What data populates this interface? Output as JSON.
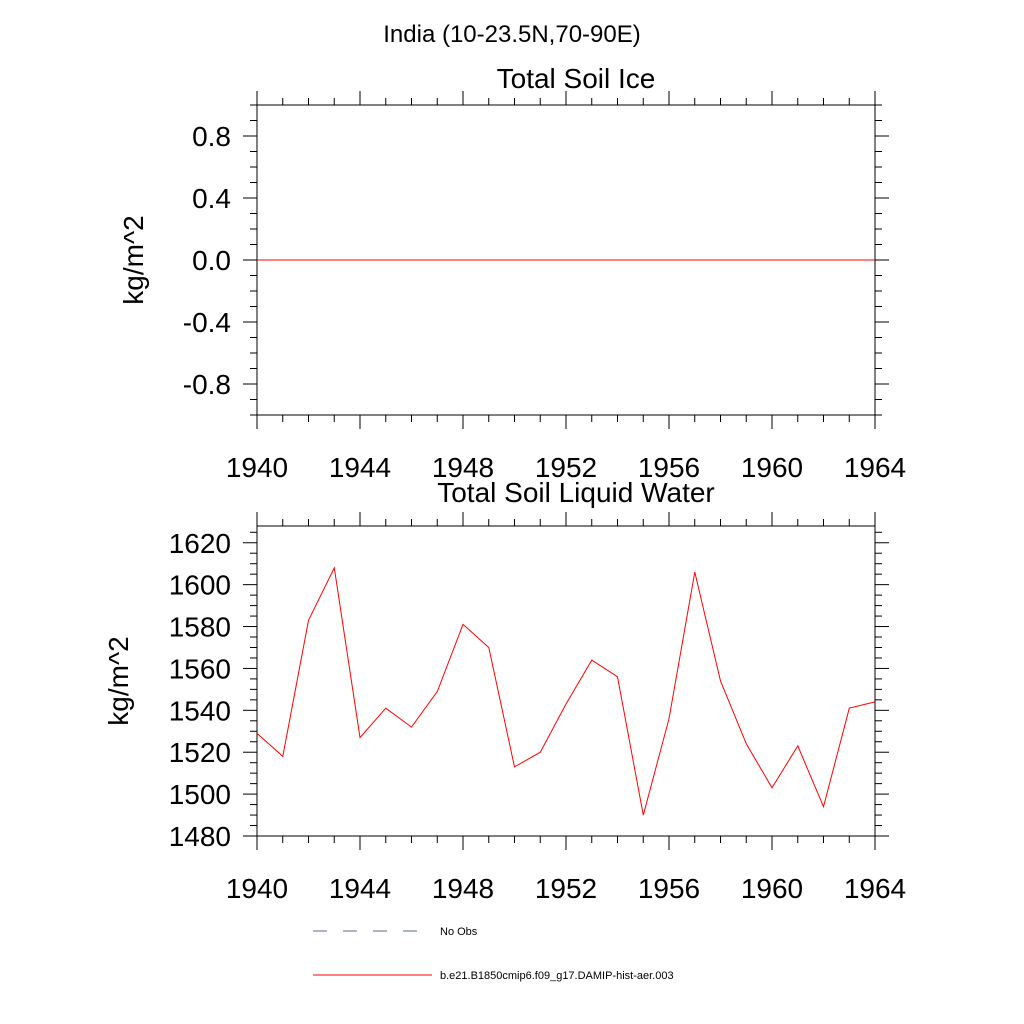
{
  "page": {
    "suptitle": "India (10-23.5N,70-90E)"
  },
  "chart_data": [
    {
      "type": "line",
      "title": "Total Soil Ice",
      "xlabel": "",
      "ylabel": "kg/m^2",
      "xlim": [
        1940,
        1964
      ],
      "ylim": [
        -1.0,
        1.0
      ],
      "x_ticks": [
        "1940",
        "1944",
        "1948",
        "1952",
        "1956",
        "1960",
        "1964"
      ],
      "y_ticks": [
        "0.8",
        "0.4",
        "0.0",
        "-0.4",
        "-0.8"
      ],
      "x": [
        1940,
        1941,
        1942,
        1943,
        1944,
        1945,
        1946,
        1947,
        1948,
        1949,
        1950,
        1951,
        1952,
        1953,
        1954,
        1955,
        1956,
        1957,
        1958,
        1959,
        1960,
        1961,
        1962,
        1963,
        1964
      ],
      "series": [
        {
          "name": "b.e21.B1850cmip6.f09_g17.DAMIP-hist-aer.003",
          "color": "#ff0000",
          "values": [
            0,
            0,
            0,
            0,
            0,
            0,
            0,
            0,
            0,
            0,
            0,
            0,
            0,
            0,
            0,
            0,
            0,
            0,
            0,
            0,
            0,
            0,
            0,
            0,
            0
          ]
        }
      ],
      "grid": false
    },
    {
      "type": "line",
      "title": "Total Soil Liquid Water",
      "xlabel": "",
      "ylabel": "kg/m^2",
      "xlim": [
        1940,
        1964
      ],
      "ylim": [
        1480,
        1628
      ],
      "x_ticks": [
        "1940",
        "1944",
        "1948",
        "1952",
        "1956",
        "1960",
        "1964"
      ],
      "y_ticks": [
        "1620",
        "1600",
        "1580",
        "1560",
        "1540",
        "1520",
        "1500",
        "1480"
      ],
      "x": [
        1940,
        1941,
        1942,
        1943,
        1944,
        1945,
        1946,
        1947,
        1948,
        1949,
        1950,
        1951,
        1952,
        1953,
        1954,
        1955,
        1956,
        1957,
        1958,
        1959,
        1960,
        1961,
        1962,
        1963,
        1964
      ],
      "series": [
        {
          "name": "b.e21.B1850cmip6.f09_g17.DAMIP-hist-aer.003",
          "color": "#ff0000",
          "values": [
            1529,
            1518,
            1583,
            1608,
            1527,
            1541,
            1532,
            1549,
            1581,
            1570,
            1513,
            1520,
            1543,
            1564,
            1556,
            1490,
            1536,
            1606,
            1554,
            1524,
            1503,
            1523,
            1494,
            1541,
            1544
          ]
        }
      ],
      "grid": false
    }
  ],
  "legend": {
    "placement": "bottom",
    "items": [
      {
        "label": "No Obs",
        "style": "dashed",
        "color": "#5a6a8a"
      },
      {
        "label": "b.e21.B1850cmip6.f09_g17.DAMIP-hist-aer.003",
        "style": "solid",
        "color": "#ff0000"
      }
    ]
  }
}
